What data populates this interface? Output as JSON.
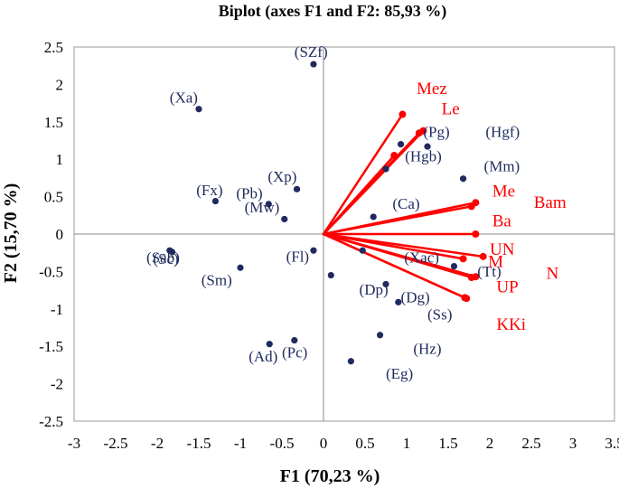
{
  "chart_data": {
    "type": "scatter",
    "title": "Biplot (axes F1 and F2: 85,93 %)",
    "xlabel": "F1 (70,23 %)",
    "ylabel": "F2 (15,70 %)",
    "xlim": [
      -3,
      3.5
    ],
    "ylim": [
      -2.5,
      2.5
    ],
    "xticks": [
      "-3",
      "-2.5",
      "-2",
      "-1.5",
      "-1",
      "-0.5",
      "0",
      "0.5",
      "1",
      "1.5",
      "2",
      "2.5",
      "3",
      "3.5"
    ],
    "yticks": [
      "2.5",
      "2",
      "1.5",
      "1",
      "0.5",
      "0",
      "-0.5",
      "-1",
      "-1.5",
      "-2",
      "-2.5"
    ],
    "colors": {
      "observations": "#1f2a5e",
      "variables": "#ff0000"
    },
    "observations": [
      {
        "label": "(SZf)",
        "x": -0.12,
        "y": 2.27
      },
      {
        "label": "(Xa)",
        "x": -1.5,
        "y": 1.67
      },
      {
        "label": "(Pg)",
        "x": 0.93,
        "y": 1.2
      },
      {
        "label": "(Hgb)",
        "x": 1.25,
        "y": 1.17
      },
      {
        "label": "(Hgb)",
        "x": 0.75,
        "y": 0.87
      },
      {
        "label": "(Hgf)",
        "x": 1.68,
        "y": 0.74
      },
      {
        "label": "(Xp)",
        "x": -0.32,
        "y": 0.6
      },
      {
        "label": "(Fx)",
        "x": -1.3,
        "y": 0.44
      },
      {
        "label": "(Pb)",
        "x": -0.66,
        "y": 0.4
      },
      {
        "label": "(Mw)",
        "x": -0.47,
        "y": 0.2
      },
      {
        "label": "(Ca)",
        "x": 0.6,
        "y": 0.23
      },
      {
        "label": "(Fl)",
        "x": -0.12,
        "y": -0.22
      },
      {
        "label": "(Sab)",
        "x": -1.85,
        "y": -0.22
      },
      {
        "label": "(Sc)",
        "x": -1.82,
        "y": -0.24
      },
      {
        "label": "(Sm)",
        "x": -1.0,
        "y": -0.45
      },
      {
        "label": "(Xac)",
        "x": 0.47,
        "y": -0.22
      },
      {
        "label": "(Tt)",
        "x": 1.57,
        "y": -0.43
      },
      {
        "label": "(Fl)",
        "x": 0.09,
        "y": -0.55
      },
      {
        "label": "(Dp)",
        "x": 0.75,
        "y": -0.67
      },
      {
        "label": "(Dg)",
        "x": 0.9,
        "y": -0.91
      },
      {
        "label": "(Hz)",
        "x": 0.68,
        "y": -1.35
      },
      {
        "label": "(Pc)",
        "x": -0.35,
        "y": -1.42
      },
      {
        "label": "(Ad)",
        "x": -0.65,
        "y": -1.47
      },
      {
        "label": "(Eg)",
        "x": 0.33,
        "y": -1.7
      }
    ],
    "observation_labels": [
      {
        "text": "(SZf)",
        "x": -0.35,
        "y": 2.37
      },
      {
        "text": "(Xa)",
        "x": -1.85,
        "y": 1.76
      },
      {
        "text": "(Pg)",
        "x": 1.2,
        "y": 1.3
      },
      {
        "text": "(Hgf)",
        "x": 1.95,
        "y": 1.3
      },
      {
        "text": "(Hgb)",
        "x": 0.98,
        "y": 0.97
      },
      {
        "text": "(Mm)",
        "x": 1.93,
        "y": 0.84
      },
      {
        "text": "(Xp)",
        "x": -0.67,
        "y": 0.7
      },
      {
        "text": "(Fx)",
        "x": -1.53,
        "y": 0.52
      },
      {
        "text": "(Pb)",
        "x": -1.05,
        "y": 0.48
      },
      {
        "text": "(Mw)",
        "x": -0.95,
        "y": 0.29
      },
      {
        "text": "(Ca)",
        "x": 0.83,
        "y": 0.34
      },
      {
        "text": "(Fl)",
        "x": -0.45,
        "y": -0.37
      },
      {
        "text": "(Sab)",
        "x": -2.13,
        "y": -0.38
      },
      {
        "text": "(Sc)",
        "x": -2.05,
        "y": -0.4
      },
      {
        "text": "(Sm)",
        "x": -1.47,
        "y": -0.68
      },
      {
        "text": "(Xac)",
        "x": 0.97,
        "y": -0.38
      },
      {
        "text": "(Tt)",
        "x": 1.85,
        "y": -0.57
      },
      {
        "text": "(Dp)",
        "x": 0.43,
        "y": -0.81
      },
      {
        "text": "(Dg)",
        "x": 0.93,
        "y": -0.91
      },
      {
        "text": "(Ss)",
        "x": 1.25,
        "y": -1.14
      },
      {
        "text": "(Hz)",
        "x": 1.08,
        "y": -1.6
      },
      {
        "text": "(Ad)",
        "x": -0.9,
        "y": -1.7
      },
      {
        "text": "(Pc)",
        "x": -0.5,
        "y": -1.65
      },
      {
        "text": "(Eg)",
        "x": 0.75,
        "y": -1.93
      }
    ],
    "variables": [
      {
        "label": "Mez",
        "x": 0.95,
        "y": 1.6
      },
      {
        "label": "Le",
        "x": 1.2,
        "y": 1.38
      },
      {
        "label": "Hgb",
        "x": 1.15,
        "y": 1.35
      },
      {
        "label": "Mm",
        "x": 0.85,
        "y": 1.05
      },
      {
        "label": "Me",
        "x": 1.83,
        "y": 0.42
      },
      {
        "label": "Bam",
        "x": 1.78,
        "y": 0.37
      },
      {
        "label": "Ba",
        "x": 1.83,
        "y": 0.0
      },
      {
        "label": "UN",
        "x": 1.92,
        "y": -0.3
      },
      {
        "label": "Xac",
        "x": 1.68,
        "y": -0.33
      },
      {
        "label": "M",
        "x": 1.83,
        "y": -0.57
      },
      {
        "label": "N",
        "x": 1.78,
        "y": -0.58
      },
      {
        "label": "UP",
        "x": 1.7,
        "y": -0.85
      },
      {
        "label": "KKi",
        "x": 1.72,
        "y": -0.86
      }
    ],
    "variable_labels": [
      {
        "text": "Mez",
        "x": 1.12,
        "y": 1.87
      },
      {
        "text": "Le",
        "x": 1.42,
        "y": 1.6
      },
      {
        "text": "Me",
        "x": 2.03,
        "y": 0.5
      },
      {
        "text": "Bam",
        "x": 2.53,
        "y": 0.35
      },
      {
        "text": "Ba",
        "x": 2.03,
        "y": 0.1
      },
      {
        "text": "UN",
        "x": 2.0,
        "y": -0.28
      },
      {
        "text": "M",
        "x": 1.98,
        "y": -0.44
      },
      {
        "text": "N",
        "x": 2.68,
        "y": -0.6
      },
      {
        "text": "UP",
        "x": 2.08,
        "y": -0.78
      },
      {
        "text": "KKi",
        "x": 2.08,
        "y": -1.28
      }
    ]
  }
}
